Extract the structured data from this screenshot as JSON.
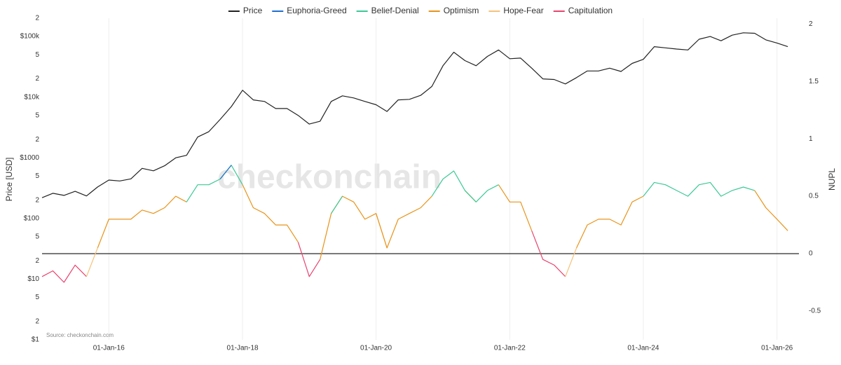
{
  "chart_data": {
    "type": "line",
    "y_label": "Price [USD]",
    "y2_label": "NUPL",
    "watermark": "checkonchain",
    "source": "Source: checkonchain.com",
    "log_y": true,
    "grid": true,
    "zero_line_y2": true,
    "legend": "top",
    "x": [
      "2015-01-01",
      "2015-03-01",
      "2015-05-01",
      "2015-07-01",
      "2015-09-01",
      "2015-11-01",
      "2016-01-01",
      "2016-03-01",
      "2016-05-01",
      "2016-07-01",
      "2016-09-01",
      "2016-11-01",
      "2017-01-01",
      "2017-03-01",
      "2017-05-01",
      "2017-07-01",
      "2017-09-01",
      "2017-11-01",
      "2018-01-01",
      "2018-03-01",
      "2018-05-01",
      "2018-07-01",
      "2018-09-01",
      "2018-11-01",
      "2019-01-01",
      "2019-03-01",
      "2019-05-01",
      "2019-07-01",
      "2019-09-01",
      "2019-11-01",
      "2020-01-01",
      "2020-03-01",
      "2020-05-01",
      "2020-07-01",
      "2020-09-01",
      "2020-11-01",
      "2021-01-01",
      "2021-03-01",
      "2021-05-01",
      "2021-07-01",
      "2021-09-01",
      "2021-11-01",
      "2022-01-01",
      "2022-03-01",
      "2022-05-01",
      "2022-07-01",
      "2022-09-01",
      "2022-11-01",
      "2023-01-01",
      "2023-03-01",
      "2023-05-01",
      "2023-07-01",
      "2023-09-01",
      "2023-11-01",
      "2024-01-01",
      "2024-03-01",
      "2024-05-01",
      "2024-07-01",
      "2024-09-01",
      "2024-11-01",
      "2025-01-01",
      "2025-03-01",
      "2025-05-01",
      "2025-07-01",
      "2025-09-01",
      "2025-11-01",
      "2026-01-01",
      "2026-03-01"
    ],
    "xlim": [
      "2015-01-01",
      "2026-05-01"
    ],
    "xticks": [
      {
        "value": "2016-01-01",
        "label": "01-Jan-16"
      },
      {
        "value": "2018-01-01",
        "label": "01-Jan-18"
      },
      {
        "value": "2020-01-01",
        "label": "01-Jan-20"
      },
      {
        "value": "2022-01-01",
        "label": "01-Jan-22"
      },
      {
        "value": "2024-01-01",
        "label": "01-Jan-24"
      },
      {
        "value": "2026-01-01",
        "label": "01-Jan-26"
      }
    ],
    "ylim": [
      1,
      200000
    ],
    "yticks": [
      {
        "value": 1,
        "label": "$1"
      },
      2,
      5,
      {
        "value": 10,
        "label": "$10"
      },
      {
        "value": 20,
        "label": "2"
      },
      {
        "value": 50,
        "label": "5"
      },
      {
        "value": 100,
        "label": "$100"
      },
      {
        "value": 200,
        "label": "2"
      },
      {
        "value": 500,
        "label": "5"
      },
      {
        "value": 1000,
        "label": "$1000"
      },
      {
        "value": 2000,
        "label": "2"
      },
      {
        "value": 5000,
        "label": "5"
      },
      {
        "value": 10000,
        "label": "$10k"
      },
      {
        "value": 20000,
        "label": "2"
      },
      {
        "value": 50000,
        "label": "5"
      },
      {
        "value": 100000,
        "label": "$100k"
      },
      {
        "value": 200000,
        "label": "2"
      }
    ],
    "y2lim": [
      -0.75,
      2.05
    ],
    "y2ticks": [
      -0.5,
      0,
      0.5,
      1,
      1.5,
      2
    ],
    "series": [
      {
        "name": "Price",
        "color": "#222222",
        "axis": "y",
        "values": [
          220,
          260,
          240,
          280,
          235,
          330,
          430,
          415,
          450,
          670,
          610,
          740,
          1000,
          1100,
          2200,
          2700,
          4300,
          7000,
          13000,
          9000,
          8500,
          6500,
          6500,
          5000,
          3600,
          4000,
          8500,
          10500,
          9700,
          8500,
          7500,
          5800,
          9000,
          9200,
          10700,
          15000,
          33000,
          55000,
          40000,
          33000,
          47000,
          60000,
          43000,
          44000,
          30000,
          20000,
          19500,
          16500,
          21000,
          27000,
          27000,
          30000,
          26500,
          36000,
          42000,
          68000,
          65000,
          62000,
          60000,
          90000,
          100000,
          85000,
          105000,
          115000,
          113000,
          88000,
          78000,
          68000
        ]
      },
      {
        "name": "Euphoria-Greed",
        "color": "#1f6fd1",
        "axis": "y2",
        "values": [
          null,
          null,
          null,
          null,
          null,
          null,
          null,
          null,
          null,
          null,
          null,
          null,
          null,
          null,
          null,
          null,
          0.65,
          0.77,
          null,
          null,
          null,
          null,
          null,
          null,
          null,
          null,
          null,
          null,
          null,
          null,
          null,
          null,
          null,
          null,
          null,
          null,
          null,
          null,
          null,
          null,
          null,
          null,
          null,
          null,
          null,
          null,
          null,
          null,
          null,
          null,
          null,
          null,
          null,
          null,
          null,
          null,
          null,
          null,
          null,
          null,
          null,
          null,
          null,
          null,
          null,
          null,
          null,
          null
        ]
      },
      {
        "name": "Belief-Denial",
        "color": "#3cc996",
        "axis": "y2",
        "values": [
          null,
          null,
          null,
          null,
          null,
          null,
          null,
          null,
          null,
          null,
          null,
          null,
          null,
          0.45,
          0.6,
          0.6,
          0.65,
          0.77,
          0.6,
          null,
          null,
          null,
          null,
          null,
          null,
          null,
          0.35,
          0.5,
          null,
          null,
          null,
          null,
          null,
          null,
          null,
          0.5,
          0.65,
          0.72,
          0.55,
          0.45,
          0.55,
          0.6,
          null,
          null,
          null,
          null,
          null,
          null,
          null,
          null,
          null,
          null,
          null,
          null,
          0.5,
          0.62,
          0.6,
          0.55,
          0.5,
          0.6,
          0.62,
          0.5,
          0.55,
          0.58,
          0.55,
          null,
          null,
          null
        ]
      },
      {
        "name": "Optimism",
        "color": "#e8941a",
        "axis": "y2",
        "values": [
          null,
          null,
          null,
          null,
          null,
          0.05,
          0.3,
          0.3,
          0.3,
          0.38,
          0.35,
          0.4,
          0.5,
          0.45,
          null,
          null,
          null,
          null,
          0.6,
          0.4,
          0.35,
          0.25,
          0.25,
          0.1,
          null,
          -0.05,
          0.35,
          0.5,
          0.45,
          0.3,
          0.35,
          0.05,
          0.3,
          0.35,
          0.4,
          0.5,
          null,
          null,
          0.55,
          0.45,
          null,
          0.6,
          0.45,
          0.45,
          0.2,
          null,
          null,
          null,
          0.05,
          0.25,
          0.3,
          0.3,
          0.25,
          0.45,
          0.5,
          null,
          null,
          null,
          null,
          null,
          null,
          null,
          null,
          null,
          0.55,
          0.4,
          0.3,
          0.2
        ]
      },
      {
        "name": "Hope-Fear",
        "color": "#f6c27a",
        "axis": "y2",
        "values": [
          null,
          null,
          null,
          null,
          -0.2,
          0.05,
          null,
          null,
          null,
          null,
          null,
          null,
          null,
          null,
          null,
          null,
          null,
          null,
          null,
          null,
          null,
          null,
          null,
          null,
          null,
          null,
          null,
          null,
          null,
          null,
          0.35,
          0.05,
          null,
          null,
          null,
          null,
          null,
          null,
          null,
          null,
          null,
          null,
          null,
          null,
          null,
          null,
          null,
          -0.2,
          0.05,
          null,
          null,
          null,
          null,
          null,
          null,
          null,
          null,
          null,
          null,
          null,
          null,
          null,
          null,
          null,
          null,
          null,
          null,
          null
        ]
      },
      {
        "name": "Capitulation",
        "color": "#e8446e",
        "axis": "y2",
        "values": [
          -0.2,
          -0.15,
          -0.25,
          -0.1,
          -0.2,
          null,
          null,
          null,
          null,
          null,
          null,
          null,
          null,
          null,
          null,
          null,
          null,
          null,
          null,
          null,
          null,
          null,
          null,
          0.1,
          -0.2,
          -0.05,
          null,
          null,
          null,
          null,
          null,
          null,
          null,
          null,
          null,
          null,
          null,
          null,
          null,
          null,
          null,
          null,
          null,
          null,
          0.2,
          -0.05,
          -0.1,
          -0.2,
          null,
          null,
          null,
          null,
          null,
          null,
          null,
          null,
          null,
          null,
          null,
          null,
          null,
          null,
          null,
          null,
          null,
          null,
          null,
          null
        ]
      }
    ]
  }
}
